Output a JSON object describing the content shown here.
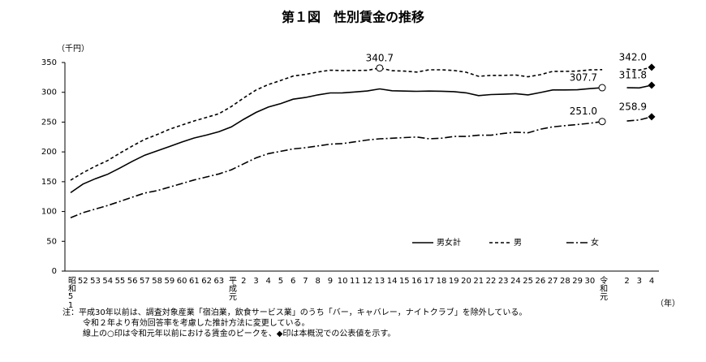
{
  "chart_data": {
    "type": "line",
    "title": "第１図　性別賃金の推移",
    "y_unit": "（千円）",
    "x_unit": "（年）",
    "categories": [
      "昭和51",
      "52",
      "53",
      "54",
      "55",
      "56",
      "57",
      "58",
      "59",
      "60",
      "61",
      "62",
      "63",
      "平成元",
      "2",
      "3",
      "4",
      "5",
      "6",
      "7",
      "8",
      "9",
      "10",
      "11",
      "12",
      "13",
      "14",
      "15",
      "16",
      "17",
      "18",
      "19",
      "20",
      "21",
      "22",
      "23",
      "24",
      "25",
      "26",
      "27",
      "28",
      "29",
      "30",
      "令和元",
      null,
      "2",
      "3",
      "4"
    ],
    "ylim": [
      0,
      350
    ],
    "yticks": [
      0,
      50,
      100,
      150,
      200,
      250,
      300,
      350
    ],
    "grid": false,
    "legend": "bottom-right",
    "series": [
      {
        "name": "男女計",
        "color": "#000000",
        "line_style": "solid",
        "values": [
          131.5,
          146,
          155,
          162.5,
          173.1,
          184.2,
          194.5,
          201.7,
          209,
          216.5,
          223.3,
          228.3,
          233.9,
          241.8,
          254.7,
          266.3,
          275.2,
          281.1,
          288.4,
          291.3,
          295.6,
          298.9,
          299.1,
          300.6,
          302.2,
          305.8,
          302.6,
          302.1,
          301.6,
          302,
          301.8,
          301.1,
          299.1,
          294.5,
          296.2,
          296.8,
          297.7,
          295.7,
          299.6,
          304,
          304,
          304.3,
          306.2,
          307.7,
          null,
          307.7,
          307.4,
          311.8
        ],
        "value_labels": [
          null,
          null,
          null,
          null,
          null,
          null,
          null,
          null,
          null,
          null,
          null,
          null,
          null,
          null,
          null,
          null,
          null,
          null,
          null,
          null,
          null,
          null,
          null,
          null,
          null,
          null,
          null,
          null,
          null,
          null,
          null,
          null,
          null,
          null,
          null,
          null,
          null,
          null,
          null,
          null,
          null,
          null,
          null,
          "307.7",
          null,
          null,
          null,
          "311.8"
        ]
      },
      {
        "name": "男",
        "color": "#000000",
        "line_style": "dashed",
        "values": [
          152.5,
          165,
          176,
          185.5,
          198,
          210,
          221,
          229,
          238,
          245,
          252,
          258,
          264,
          276.1,
          290.5,
          303.8,
          313,
          319.9,
          327.2,
          330,
          334,
          337,
          336.4,
          336.7,
          336.8,
          340.7,
          336.2,
          335.5,
          333.9,
          337.8,
          337.7,
          336.7,
          333.7,
          326.8,
          328.3,
          328.3,
          329,
          326,
          329.6,
          335.1,
          335.2,
          335.5,
          337.6,
          338,
          null,
          338.8,
          337.2,
          342
        ],
        "value_labels": [
          null,
          null,
          null,
          null,
          null,
          null,
          null,
          null,
          null,
          null,
          null,
          null,
          null,
          null,
          null,
          null,
          null,
          null,
          null,
          null,
          null,
          null,
          null,
          null,
          null,
          "340.7",
          null,
          null,
          null,
          null,
          null,
          null,
          null,
          null,
          null,
          null,
          null,
          null,
          null,
          null,
          null,
          null,
          null,
          null,
          null,
          null,
          null,
          "342.0"
        ]
      },
      {
        "name": "女",
        "color": "#000000",
        "line_style": "dashdot",
        "values": [
          89.5,
          98,
          104,
          110,
          117,
          124,
          131,
          135,
          141,
          147,
          153,
          158,
          163,
          170,
          180,
          190,
          197,
          201,
          205,
          207,
          210,
          213,
          214,
          217,
          220,
          222,
          223,
          224,
          225,
          222,
          223,
          226,
          226,
          228,
          228,
          231,
          233,
          232,
          238,
          242,
          244,
          246,
          248,
          251,
          null,
          251.8,
          253.6,
          258.9
        ],
        "value_labels": [
          null,
          null,
          null,
          null,
          null,
          null,
          null,
          null,
          null,
          null,
          null,
          null,
          null,
          null,
          null,
          null,
          null,
          null,
          null,
          null,
          null,
          null,
          null,
          null,
          null,
          null,
          null,
          null,
          null,
          null,
          null,
          null,
          null,
          null,
          null,
          null,
          null,
          null,
          null,
          null,
          null,
          null,
          null,
          "251.0",
          null,
          null,
          null,
          "258.9"
        ]
      }
    ],
    "notes": [
      "注：平成30年以前は、調査対象産業「宿泊業，飲食サービス業」のうち「バー，キャバレー，ナイトクラブ」を除外している。",
      "令和２年より有効回答率を考慮した推計方法に変更している。",
      "線上の○印は令和元年以前における賃金のピークを、◆印は本概況での公表値を示す。"
    ]
  }
}
